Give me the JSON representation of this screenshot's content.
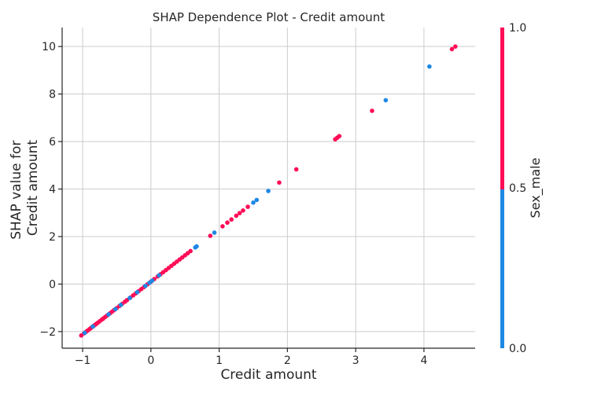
{
  "chart_data": {
    "type": "scatter",
    "title": "SHAP Dependence Plot - Credit amount",
    "xlabel": "Credit amount",
    "ylabel_lines": [
      "SHAP value for",
      "Credit amount"
    ],
    "xlim": [
      -1.3,
      4.75
    ],
    "ylim": [
      -2.7,
      10.8
    ],
    "xticks": [
      -1,
      0,
      1,
      2,
      3,
      4
    ],
    "xtick_labels": [
      "−1",
      "0",
      "1",
      "2",
      "3",
      "4"
    ],
    "yticks": [
      -2,
      0,
      2,
      4,
      6,
      8,
      10
    ],
    "ytick_labels": [
      "−2",
      "0",
      "2",
      "4",
      "6",
      "8",
      "10"
    ],
    "grid": true,
    "relationship": {
      "slope": 2.22,
      "intercept": 0.1
    },
    "colorbar": {
      "label": "Sex_male",
      "ticks": [
        0.0,
        0.5,
        1.0
      ],
      "tick_labels": [
        "0.0",
        "0.5",
        "1.0"
      ],
      "low_color": "#1e88e5",
      "high_color": "#ff0d57"
    },
    "points": {
      "male_x": [
        -1.02,
        -0.98,
        -0.95,
        -0.93,
        -0.9,
        -0.88,
        -0.86,
        -0.84,
        -0.82,
        -0.8,
        -0.78,
        -0.75,
        -0.72,
        -0.7,
        -0.67,
        -0.64,
        -0.6,
        -0.57,
        -0.54,
        -0.5,
        -0.46,
        -0.42,
        -0.38,
        -0.35,
        -0.3,
        -0.26,
        -0.22,
        -0.18,
        -0.14,
        -0.1,
        -0.05,
        0.0,
        0.05,
        0.1,
        0.14,
        0.18,
        0.22,
        0.26,
        0.3,
        0.34,
        0.38,
        0.42,
        0.46,
        0.5,
        0.54,
        0.58,
        0.87,
        1.05,
        1.12,
        1.18,
        1.25,
        1.3,
        1.35,
        1.42,
        1.88,
        2.13,
        2.7,
        2.73,
        2.76,
        3.24,
        4.41,
        4.46
      ],
      "female_x": [
        -0.97,
        -0.85,
        -0.62,
        -0.52,
        -0.44,
        -0.31,
        -0.2,
        -0.08,
        -0.02,
        0.02,
        0.12,
        0.65,
        0.67,
        0.93,
        1.5,
        1.55,
        1.72,
        3.44,
        4.08
      ]
    }
  }
}
